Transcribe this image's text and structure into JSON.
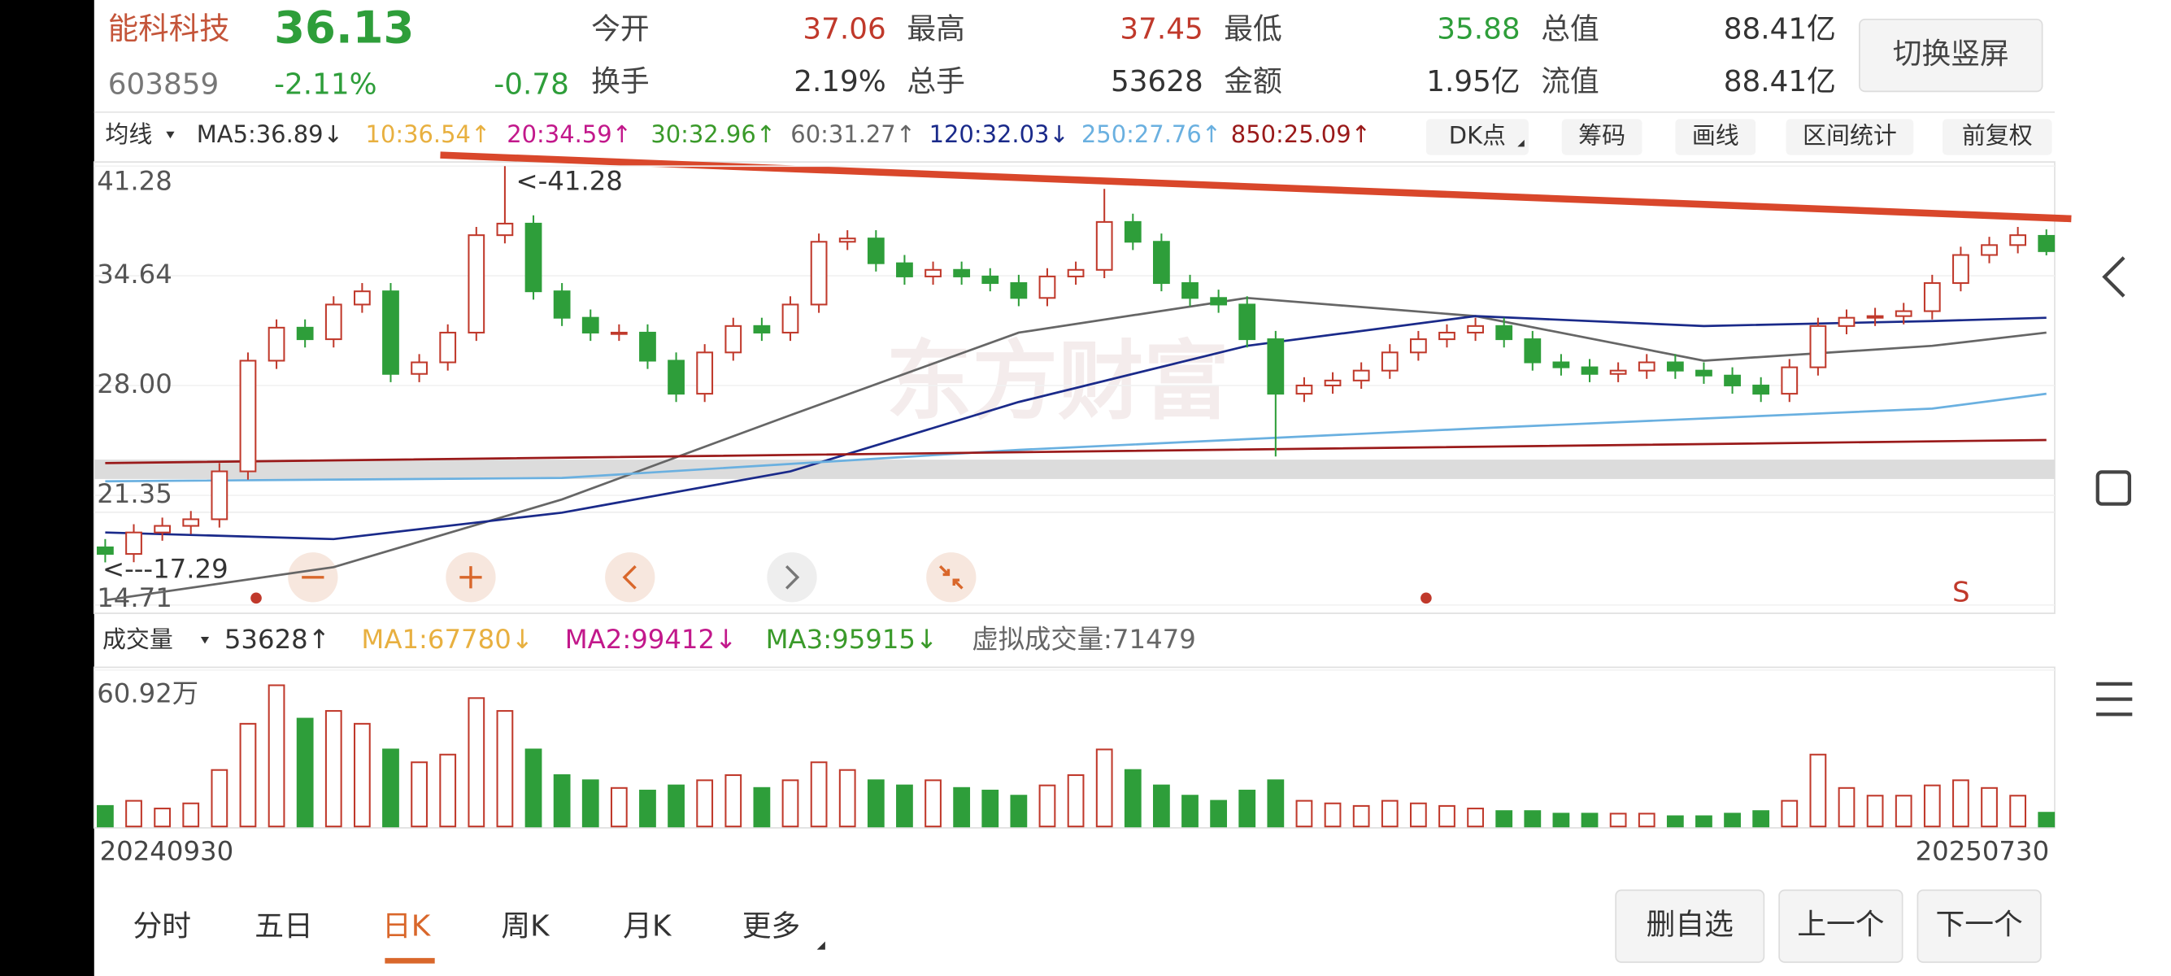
{
  "header": {
    "name": "能科科技",
    "price": "36.13",
    "code": "603859",
    "change_pct": "-2.11%",
    "change": "-0.78",
    "stats": [
      {
        "label": "今开",
        "value": "37.06"
      },
      {
        "label": "最高",
        "value": "37.45"
      },
      {
        "label": "最低",
        "value": "35.88"
      },
      {
        "label": "总值",
        "value": "88.41亿"
      },
      {
        "label": "换手",
        "value": "2.19%"
      },
      {
        "label": "总手",
        "value": "53628"
      },
      {
        "label": "金额",
        "value": "1.95亿"
      },
      {
        "label": "流值",
        "value": "88.41亿"
      }
    ],
    "button": "切换竖屏"
  },
  "ma_bar": {
    "selector": "均线",
    "items": [
      "MA5:36.89↓",
      "10:36.54↑",
      "20:34.59↑",
      "30:32.96↑",
      "60:31.27↑",
      "120:32.03↓",
      "250:27.76↑",
      "850:25.09↑"
    ],
    "tools": [
      "DK点",
      "筹码",
      "画线",
      "区间统计",
      "前复权"
    ]
  },
  "chart_data": [
    {
      "type": "candlestick",
      "up_color": "#c0392b",
      "down_color": "#2e9e3a",
      "open": [
        18.2,
        17.8,
        19.1,
        19.5,
        19.9,
        22.8,
        29.5,
        31.5,
        30.8,
        32.9,
        33.7,
        28.7,
        29.4,
        31.2,
        37.1,
        37.8,
        33.7,
        32.1,
        31.2,
        31.2,
        29.5,
        27.5,
        30.0,
        31.6,
        31.2,
        32.9,
        36.7,
        36.9,
        35.4,
        34.6,
        35.0,
        34.6,
        34.2,
        33.3,
        34.6,
        35.0,
        37.9,
        36.7,
        34.2,
        33.3,
        32.9,
        30.8,
        27.5,
        28.0,
        28.3,
        28.9,
        30.0,
        30.8,
        31.2,
        31.6,
        30.8,
        29.4,
        29.1,
        28.7,
        28.9,
        29.4,
        28.9,
        28.6,
        28.0,
        27.5,
        29.1,
        31.6,
        32.1,
        32.2,
        32.5,
        34.2,
        35.9,
        36.5,
        37.06
      ],
      "high": [
        18.7,
        19.6,
        20.0,
        20.4,
        23.3,
        30.0,
        32.0,
        32.0,
        33.4,
        34.2,
        34.2,
        29.9,
        31.7,
        37.6,
        41.28,
        38.3,
        34.2,
        32.6,
        31.7,
        31.7,
        30.0,
        30.5,
        32.1,
        32.1,
        33.4,
        37.2,
        37.4,
        37.4,
        35.9,
        35.5,
        35.5,
        35.1,
        34.7,
        35.1,
        35.5,
        39.9,
        38.4,
        37.2,
        34.7,
        33.8,
        33.4,
        31.3,
        28.5,
        28.8,
        29.4,
        30.5,
        31.3,
        31.7,
        32.1,
        32.1,
        31.3,
        29.9,
        29.6,
        29.4,
        29.9,
        29.9,
        29.4,
        29.1,
        28.5,
        29.6,
        32.1,
        32.6,
        32.7,
        33.0,
        34.7,
        36.4,
        37.0,
        37.6,
        37.45
      ],
      "low": [
        17.29,
        17.3,
        18.6,
        19.0,
        19.4,
        22.3,
        29.0,
        30.3,
        30.3,
        32.4,
        28.2,
        28.2,
        28.9,
        30.7,
        36.6,
        33.2,
        31.6,
        30.7,
        30.7,
        29.0,
        27.0,
        27.0,
        29.5,
        30.7,
        30.7,
        32.4,
        36.2,
        34.9,
        34.1,
        34.1,
        34.1,
        33.7,
        32.8,
        32.8,
        34.1,
        34.5,
        36.2,
        33.7,
        32.8,
        32.4,
        30.3,
        23.7,
        27.0,
        27.5,
        27.8,
        28.4,
        29.5,
        30.3,
        30.7,
        30.3,
        28.9,
        28.6,
        28.2,
        28.2,
        28.4,
        28.4,
        28.1,
        27.5,
        27.0,
        27.0,
        28.6,
        31.1,
        31.6,
        31.7,
        32.0,
        33.7,
        35.4,
        36.0,
        35.88
      ],
      "close": [
        17.8,
        19.1,
        19.5,
        19.9,
        22.8,
        29.5,
        31.5,
        30.8,
        32.9,
        33.7,
        28.7,
        29.4,
        31.2,
        37.1,
        37.8,
        33.7,
        32.1,
        31.2,
        31.2,
        29.5,
        27.5,
        30.0,
        31.6,
        31.2,
        32.9,
        36.7,
        36.9,
        35.4,
        34.6,
        35.0,
        34.6,
        34.2,
        33.3,
        34.6,
        35.0,
        37.9,
        36.7,
        34.2,
        33.3,
        32.9,
        30.8,
        27.5,
        28.0,
        28.3,
        28.9,
        30.0,
        30.8,
        31.2,
        31.6,
        30.8,
        29.4,
        29.1,
        28.7,
        28.9,
        29.4,
        28.9,
        28.6,
        28.0,
        27.5,
        29.1,
        31.6,
        32.1,
        32.2,
        32.5,
        34.2,
        35.9,
        36.5,
        37.1,
        36.13
      ],
      "ylim": [
        14.71,
        41.28
      ],
      "yticks": [
        41.28,
        34.64,
        {
          "value": 28,
          "label": "28.00"
        },
        21.35,
        14.71
      ],
      "annotations": [
        "<-41.28",
        "<---17.29",
        "S"
      ],
      "ma_series": [
        {
          "color": "#666666",
          "x": [
            0,
            8,
            16,
            24,
            32,
            40,
            48,
            56,
            64,
            68
          ],
          "values": [
            15.0,
            17.0,
            21.1,
            26.2,
            31.2,
            33.3,
            32.2,
            29.5,
            30.4,
            31.2
          ]
        },
        {
          "color": "#1a2a8a",
          "x": [
            0,
            8,
            16,
            24,
            32,
            40,
            48,
            56,
            64,
            68
          ],
          "values": [
            19.1,
            18.7,
            20.3,
            22.8,
            27.0,
            30.4,
            32.2,
            31.6,
            31.9,
            32.1
          ]
        },
        {
          "color": "#6ab0e0",
          "x": [
            0,
            16,
            32,
            48,
            64,
            68
          ],
          "values": [
            22.2,
            22.4,
            24.1,
            25.4,
            26.6,
            27.5
          ]
        },
        {
          "color": "#9a1a1a",
          "x": [
            0,
            34,
            68
          ],
          "values": [
            23.3,
            24.0,
            24.7
          ]
        }
      ]
    },
    {
      "type": "volume_bar",
      "values": [
        8,
        10,
        7,
        9,
        22,
        40,
        55,
        42,
        45,
        40,
        30,
        25,
        28,
        50,
        45,
        30,
        20,
        18,
        15,
        14,
        16,
        18,
        20,
        15,
        18,
        25,
        22,
        18,
        16,
        18,
        15,
        14,
        12,
        16,
        20,
        30,
        22,
        16,
        12,
        10,
        14,
        18,
        10,
        9,
        8,
        10,
        9,
        8,
        7,
        6,
        6,
        5,
        5,
        5,
        5,
        4,
        4,
        5,
        6,
        10,
        28,
        15,
        12,
        12,
        16,
        18,
        15,
        12,
        5.36
      ],
      "ylim": [
        0,
        60.92
      ],
      "yticks": [
        {
          "value": 60.92,
          "label": "60.92万"
        }
      ]
    }
  ],
  "volume_bar": {
    "selector": "成交量",
    "items": [
      "53628↑",
      "MA1:67780↓",
      "MA2:99412↓",
      "MA3:95915↓",
      "虚拟成交量:71479"
    ]
  },
  "dates": [
    "20240930",
    "20250730"
  ],
  "tabs": [
    "分时",
    "五日",
    "日K",
    "周K",
    "月K",
    "更多"
  ],
  "buttons": [
    "删自选",
    "上一个",
    "下一个"
  ]
}
